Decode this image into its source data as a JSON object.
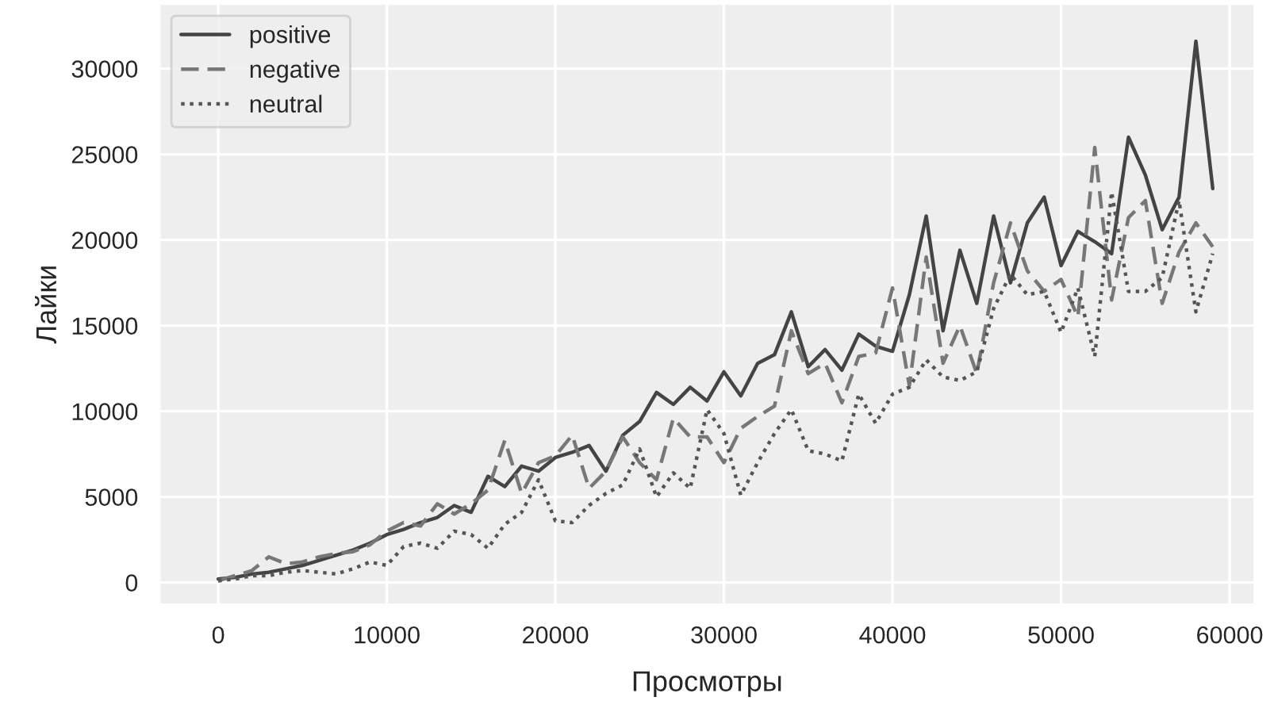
{
  "chart_data": {
    "type": "line",
    "xlabel": "Просмотры",
    "ylabel": "Лайки",
    "x": [
      0,
      1000,
      2000,
      3000,
      4000,
      5000,
      6000,
      7000,
      8000,
      9000,
      10000,
      11000,
      12000,
      13000,
      14000,
      15000,
      16000,
      17000,
      18000,
      19000,
      20000,
      21000,
      22000,
      23000,
      24000,
      25000,
      26000,
      27000,
      28000,
      29000,
      30000,
      31000,
      32000,
      33000,
      34000,
      35000,
      36000,
      37000,
      38000,
      39000,
      40000,
      41000,
      42000,
      43000,
      44000,
      45000,
      46000,
      47000,
      48000,
      49000,
      50000,
      51000,
      52000,
      53000,
      54000,
      55000,
      56000,
      57000,
      58000,
      59000
    ],
    "series": [
      {
        "name": "positive",
        "color": "#444444",
        "line_style": "solid",
        "values": [
          200,
          300,
          500,
          600,
          800,
          1000,
          1300,
          1600,
          1900,
          2300,
          2800,
          3100,
          3500,
          3800,
          4500,
          4100,
          6200,
          5600,
          6800,
          6500,
          7300,
          7600,
          8000,
          6500,
          8600,
          9400,
          11100,
          10400,
          11400,
          10600,
          12300,
          10900,
          12800,
          13300,
          15800,
          12600,
          13600,
          12400,
          14500,
          13800,
          13500,
          16800,
          21400,
          14700,
          19400,
          16300,
          21400,
          17500,
          21000,
          22500,
          18500,
          20500,
          19900,
          19200,
          26000,
          23800,
          20600,
          22500,
          31600,
          23000
        ]
      },
      {
        "name": "negative",
        "color": "#777777",
        "line_style": "dashed",
        "values": [
          100,
          400,
          700,
          1500,
          1100,
          1200,
          1500,
          1700,
          1800,
          2200,
          3000,
          3500,
          3300,
          4600,
          4000,
          4600,
          5400,
          8300,
          5200,
          7000,
          7400,
          8600,
          5500,
          6500,
          8500,
          7000,
          6000,
          9600,
          8500,
          8500,
          7000,
          9000,
          9700,
          10300,
          14700,
          12200,
          12800,
          10500,
          13200,
          13400,
          17200,
          11500,
          19000,
          12800,
          15000,
          12200,
          17500,
          21000,
          18200,
          17000,
          17700,
          15500,
          25400,
          16500,
          21300,
          22300,
          16300,
          19300,
          21000,
          19600
        ]
      },
      {
        "name": "neutral",
        "color": "#555555",
        "line_style": "dotted",
        "values": [
          100,
          200,
          400,
          400,
          600,
          700,
          600,
          500,
          800,
          1200,
          1000,
          2100,
          2300,
          2000,
          3000,
          2800,
          2000,
          3400,
          4100,
          6000,
          3600,
          3500,
          4500,
          5200,
          5700,
          7800,
          5000,
          6400,
          5500,
          10100,
          8700,
          5100,
          7000,
          8700,
          10100,
          7700,
          7500,
          7100,
          11000,
          9300,
          11000,
          11400,
          13000,
          12000,
          11800,
          12300,
          16000,
          18000,
          16800,
          17000,
          14600,
          17200,
          13200,
          22800,
          17000,
          17000,
          17800,
          22300,
          15800,
          19200
        ]
      }
    ],
    "xlim": [
      -3500,
      61500
    ],
    "xticks": [
      0,
      10000,
      20000,
      30000,
      40000,
      50000,
      60000
    ],
    "ylim": [
      -1300,
      33800
    ],
    "yticks": [
      0,
      5000,
      10000,
      15000,
      20000,
      25000,
      30000
    ],
    "grid": true,
    "legend": "upper left",
    "marker": "none"
  }
}
